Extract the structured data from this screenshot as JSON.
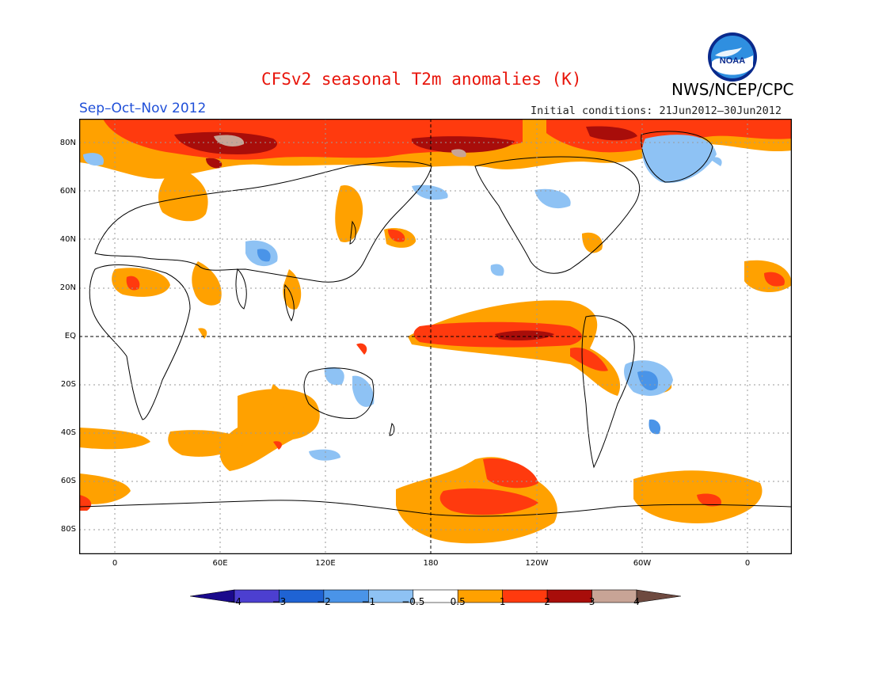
{
  "header": {
    "title": "CFSv2 seasonal T2m anomalies (K)",
    "period": "Sep–Oct–Nov 2012",
    "initial_conditions": "Initial conditions: 21Jun2012–30Jun2012",
    "agency": "NWS/NCEP/CPC",
    "logo_text": "NOAA"
  },
  "axes": {
    "lat_ticks": [
      "80N",
      "60N",
      "40N",
      "20N",
      "EQ",
      "20S",
      "40S",
      "60S",
      "80S"
    ],
    "lon_ticks": [
      "0",
      "60E",
      "120E",
      "180",
      "120W",
      "60W",
      "0"
    ]
  },
  "legend": {
    "labels": [
      "−4",
      "−3",
      "−2",
      "−1",
      "−0.5",
      "0.5",
      "1",
      "2",
      "3",
      "4"
    ],
    "colors": [
      "#1a0a8c",
      "#4c3fd0",
      "#1f63d4",
      "#4a94e8",
      "#8ec2f4",
      "#ffffff",
      "#ffa100",
      "#ff3a0e",
      "#a80d0a",
      "#c8a496",
      "#6e4a40"
    ]
  },
  "map": {
    "grid": "dotted",
    "land_outline": "black",
    "anomaly_colors": {
      "cold_light": "#8ec2f4",
      "cold_mid": "#4a94e8",
      "cold_strong": "#1f63d4",
      "warm_light": "#ffa100",
      "warm_mid": "#ff3a0e",
      "warm_strong": "#a80d0a",
      "warm_extreme": "#c8a496"
    }
  }
}
